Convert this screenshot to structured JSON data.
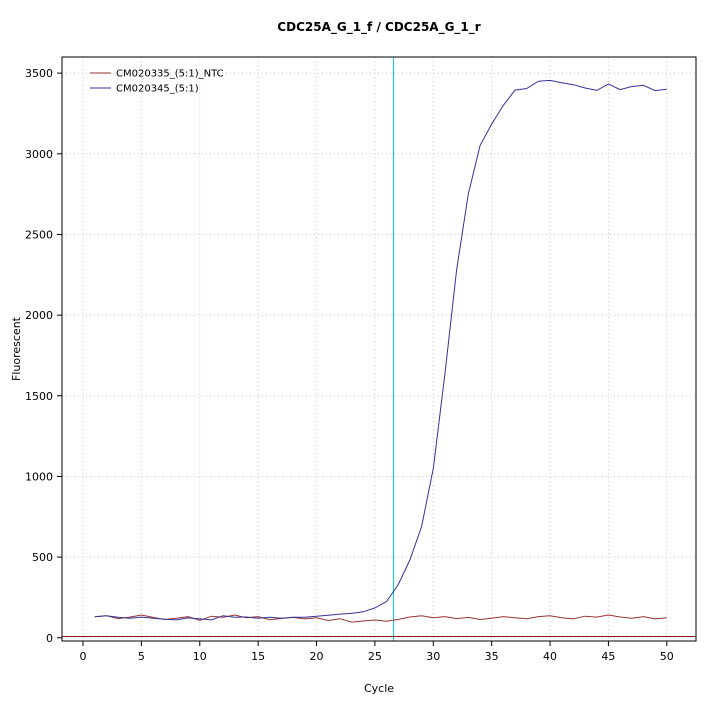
{
  "window": {
    "background": "#ffffff"
  },
  "chart_data": {
    "type": "line",
    "title": "CDC25A_G_1_f / CDC25A_G_1_r",
    "xlabel": "Cycle",
    "ylabel": "Fluorescent",
    "xlim": [
      -1.8,
      52.5
    ],
    "ylim": [
      -20,
      3600
    ],
    "xticks": [
      0,
      5,
      10,
      15,
      20,
      25,
      30,
      35,
      40,
      45,
      50
    ],
    "yticks": [
      0,
      500,
      1000,
      1500,
      2000,
      2500,
      3000,
      3500
    ],
    "grid": true,
    "grid_color": "#c9c9c9",
    "legend_position": "top-left",
    "x": [
      1,
      2,
      3,
      4,
      5,
      6,
      7,
      8,
      9,
      10,
      11,
      12,
      13,
      14,
      15,
      16,
      17,
      18,
      19,
      20,
      21,
      22,
      23,
      24,
      25,
      26,
      27,
      28,
      29,
      30,
      31,
      32,
      33,
      34,
      35,
      36,
      37,
      38,
      39,
      40,
      41,
      42,
      43,
      44,
      45,
      46,
      47,
      48,
      49,
      50
    ],
    "series": [
      {
        "name": "CM020335_(5:1)_NTC",
        "color": "#993333",
        "values": [
          130,
          137,
          119,
          128,
          141,
          126,
          113,
          121,
          131,
          108,
          134,
          127,
          141,
          124,
          131,
          112,
          120,
          126,
          117,
          124,
          107,
          118,
          97,
          104,
          110,
          103,
          114,
          129,
          136,
          124,
          131,
          119,
          126,
          113,
          121,
          131,
          124,
          118,
          131,
          137,
          124,
          117,
          134,
          128,
          141,
          129,
          121,
          131,
          117,
          124
        ]
      },
      {
        "name": "CM020345_(5:1)",
        "color": "#333399",
        "values": [
          130,
          136,
          127,
          121,
          128,
          121,
          115,
          111,
          123,
          117,
          111,
          137,
          127,
          129,
          121,
          127,
          121,
          127,
          127,
          133,
          139,
          147,
          151,
          161,
          185,
          225,
          330,
          483,
          690,
          1050,
          1640,
          2280,
          2750,
          3050,
          3185,
          3300,
          3395,
          3405,
          3450,
          3455,
          3440,
          3428,
          3408,
          3393,
          3432,
          3398,
          3417,
          3424,
          3392,
          3400
        ]
      }
    ],
    "annotations": {
      "threshold_line": {
        "y": 8,
        "color": "#8b1a1a"
      },
      "ct_line": {
        "x": 26.6,
        "color": "#00cccc"
      }
    }
  }
}
